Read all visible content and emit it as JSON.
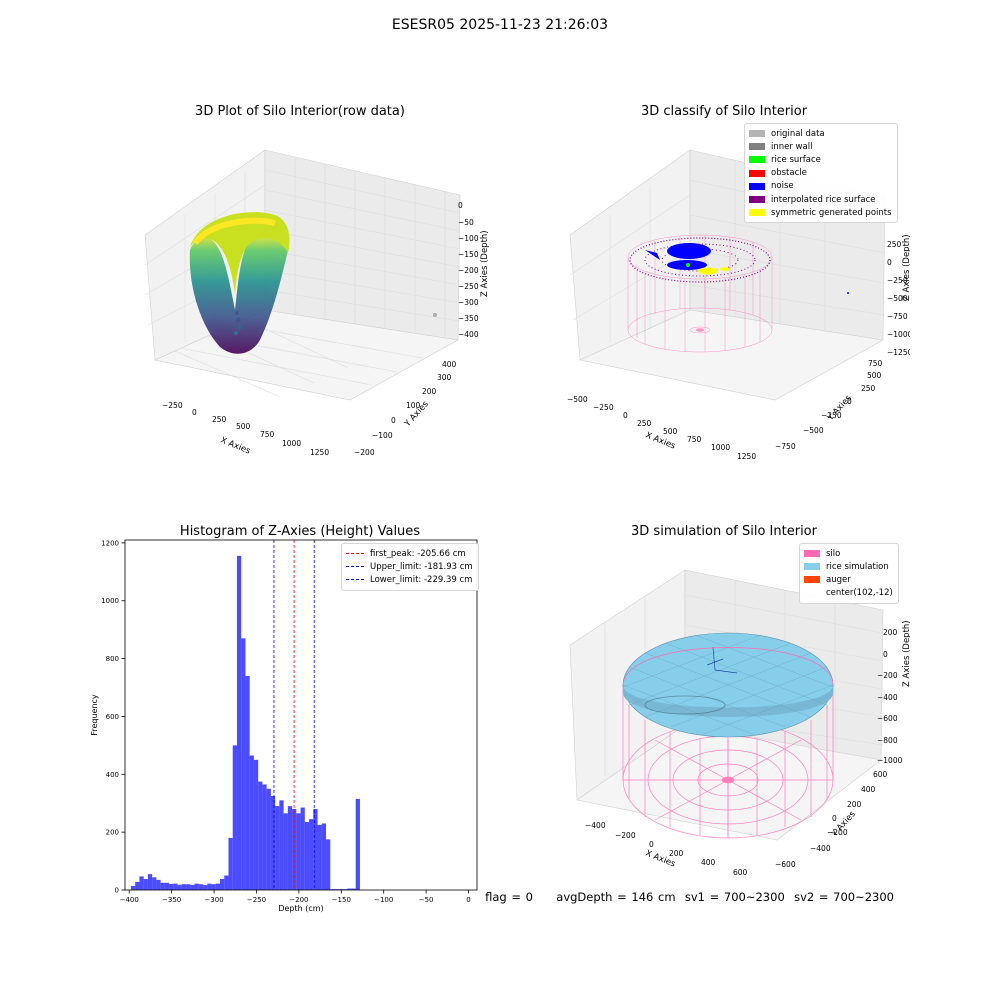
{
  "suptitle": "ESESR05 2025-11-23 21:26:03",
  "status_line": {
    "flag": "flag = 0",
    "avg_depth": "avgDepth = 146 cm",
    "sv1": "sv1 = 700~2300",
    "sv2": "sv2 = 700~2300"
  },
  "chart_data": [
    {
      "type": "scatter",
      "title": "3D Plot of Silo Interior(row data)",
      "xlabel": "X Axies",
      "ylabel": "Y Axies",
      "zlabel": "Z Axies (Depth)",
      "x_ticks": [
        "−250",
        "0",
        "250",
        "500",
        "750",
        "1000",
        "1250"
      ],
      "y_ticks": [
        "−200",
        "−100",
        "0",
        "100",
        "200",
        "300",
        "400"
      ],
      "z_ticks": [
        "0",
        "−50",
        "−100",
        "−150",
        "−200",
        "−250",
        "−300",
        "−350",
        "−400"
      ],
      "colormap": "viridis"
    },
    {
      "type": "scatter",
      "title": "3D classify of Silo Interior",
      "xlabel": "X Axies",
      "ylabel": "Y Axies",
      "zlabel": "Z Axies (Depth)",
      "x_ticks": [
        "−500",
        "−250",
        "0",
        "250",
        "500",
        "750",
        "1000",
        "1250"
      ],
      "y_ticks": [
        "−750",
        "−500",
        "−250",
        "0",
        "250",
        "500",
        "750"
      ],
      "z_ticks": [
        "250",
        "0",
        "−250",
        "−500",
        "−750",
        "−1000",
        "−1250"
      ],
      "legend": [
        {
          "label": "original data",
          "color": "#b3b3b3"
        },
        {
          "label": "inner wall",
          "color": "#808080"
        },
        {
          "label": "rice surface",
          "color": "#00ff00"
        },
        {
          "label": "obstacle",
          "color": "#ff0000"
        },
        {
          "label": "noise",
          "color": "#0000ff"
        },
        {
          "label": "interpolated rice surface",
          "color": "#800080"
        },
        {
          "label": "symmetric generated points",
          "color": "#ffff00"
        }
      ]
    },
    {
      "type": "bar",
      "title": "Histogram of Z-Axies (Height) Values",
      "xlabel": "Depth (cm)",
      "ylabel": "Frequency",
      "xlim": [
        -405,
        10
      ],
      "ylim": [
        0,
        1210
      ],
      "x_ticks": [
        -400,
        -350,
        -300,
        -250,
        -200,
        -150,
        -100,
        -50,
        0
      ],
      "x_tick_labels": [
        "−400",
        "−350",
        "−300",
        "−250",
        "−200",
        "−150",
        "−100",
        "−50",
        "0"
      ],
      "y_ticks": [
        0,
        200,
        400,
        600,
        800,
        1000,
        1200
      ],
      "bar_color": "#0000ff",
      "bin_width": 5,
      "bin_start": -398,
      "values": [
        14,
        28,
        47,
        38,
        55,
        44,
        35,
        25,
        25,
        21,
        22,
        18,
        20,
        20,
        18,
        22,
        20,
        17,
        22,
        20,
        22,
        38,
        50,
        180,
        500,
        1155,
        870,
        740,
        465,
        450,
        375,
        365,
        350,
        325,
        290,
        310,
        265,
        290,
        280,
        265,
        285,
        235,
        245,
        280,
        225,
        230,
        175,
        3,
        3,
        3,
        3,
        5,
        5,
        315
      ],
      "vlines": [
        {
          "label": "first_peak: -205.66 cm",
          "x": -205.66,
          "color": "#ff0000"
        },
        {
          "label": "Upper_limit: -181.93 cm",
          "x": -181.93,
          "color": "#0000ff"
        },
        {
          "label": "Lower_limit: -229.39 cm",
          "x": -229.39,
          "color": "#0000ff"
        }
      ]
    },
    {
      "type": "scatter",
      "title": "3D simulation of Silo Interior",
      "xlabel": "X Axies",
      "ylabel": "Y Axies",
      "zlabel": "Z Axies (Depth)",
      "x_ticks": [
        "−400",
        "−200",
        "0",
        "200",
        "400",
        "600"
      ],
      "y_ticks": [
        "−600",
        "−400",
        "−200",
        "0",
        "200",
        "400",
        "600"
      ],
      "z_ticks": [
        "200",
        "0",
        "−200",
        "−400",
        "−600",
        "−800",
        "−1000"
      ],
      "legend": [
        {
          "label": "silo",
          "color": "#ff69b4"
        },
        {
          "label": "rice simulation",
          "color": "#87ceeb"
        },
        {
          "label": "auger",
          "color": "#ff4500"
        },
        {
          "label": "center(102,-12)",
          "color": ""
        }
      ]
    }
  ]
}
